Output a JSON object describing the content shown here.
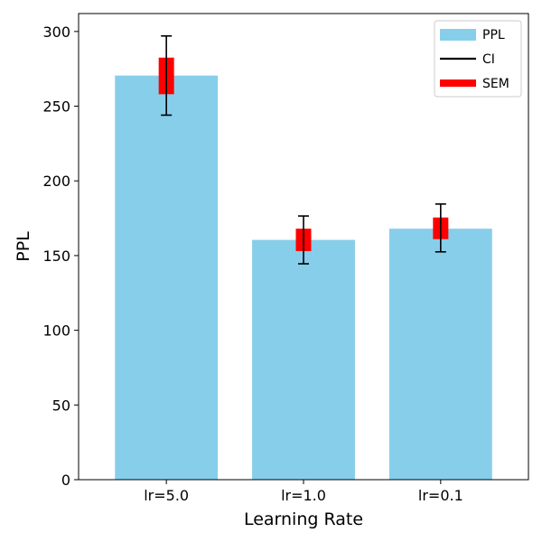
{
  "chart_data": {
    "type": "bar",
    "title": "",
    "xlabel": "Learning Rate",
    "ylabel": "PPL",
    "categories": [
      "lr=5.0",
      "lr=1.0",
      "lr=0.1"
    ],
    "series": [
      {
        "name": "PPL",
        "values": [
          270.5,
          160.5,
          168.0
        ],
        "ci": [
          [
            244.0,
            297.0
          ],
          [
            144.5,
            176.5
          ],
          [
            152.5,
            184.5
          ]
        ],
        "sem": [
          [
            258.0,
            282.5
          ],
          [
            153.0,
            168.0
          ],
          [
            161.0,
            175.5
          ]
        ]
      }
    ],
    "ylim": [
      0,
      312
    ],
    "yticks": [
      0,
      50,
      100,
      150,
      200,
      250,
      300
    ],
    "legend": {
      "placement": "top-right",
      "entries": [
        {
          "label": "PPL",
          "kind": "bar"
        },
        {
          "label": "CI",
          "kind": "errorbar"
        },
        {
          "label": "SEM",
          "kind": "sem"
        }
      ]
    },
    "grid": false,
    "colors": {
      "bar": "#87CEEB",
      "ci": "#000000",
      "sem": "#FF0000"
    }
  }
}
